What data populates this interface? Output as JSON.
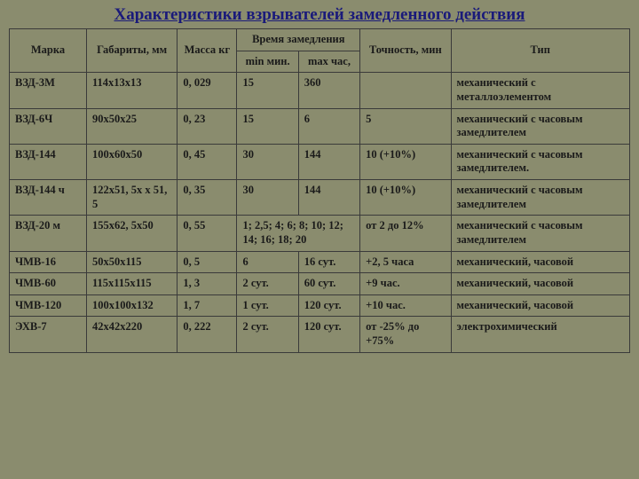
{
  "title": "Характеристики взрывателей замедленного действия",
  "headers": {
    "marka": "Марка",
    "gab": "Габариты, мм",
    "mass": "Масса кг",
    "time": "Время замедления",
    "min": "min мин.",
    "max": "max час,",
    "acc": "Точность, мин",
    "type": "Тип"
  },
  "rows": [
    {
      "marka": "ВЗД-3М",
      "gab": "114х13х13",
      "mass": "0, 029",
      "min": "15",
      "max": "360",
      "acc": "",
      "type": "механический с металлоэлементом"
    },
    {
      "marka": "ВЗД-6Ч",
      "gab": "90х50х25",
      "mass": "0, 23",
      "min": "15",
      "max": "6",
      "acc": "5",
      "type": "механический с часовым замедлителем"
    },
    {
      "marka": "ВЗД-144",
      "gab": "100х60х50",
      "mass": "0, 45",
      "min": "30",
      "max": "144",
      "acc": "10 (+10%)",
      "type": "механический с часовым замедлителем."
    },
    {
      "marka": "ВЗД-144 ч",
      "gab": "122х51, 5х х 51, 5",
      "mass": "0, 35",
      "min": "30",
      "max": "144",
      "acc": "10 (+10%)",
      "type": "механический с часовым замедлителем"
    },
    {
      "marka": "ВЗД-20 м",
      "gab": "155х62, 5х50",
      "mass": "0, 55",
      "min": "1; 2,5; 4; 6; 8; 10; 12; 14; 16; 18; 20",
      "max": "",
      "acc": "от 2 до 12%",
      "type": "механический с часовым замедлителем",
      "minspan": 2
    },
    {
      "marka": "ЧМВ-16",
      "gab": "50х50х115",
      "mass": "0, 5",
      "min": "6",
      "max": "16 сут.",
      "acc": "+2, 5 часа",
      "type": "механический, часовой"
    },
    {
      "marka": "ЧМВ-60",
      "gab": "115х115х115",
      "mass": "1, 3",
      "min": "2 сут.",
      "max": "60 сут.",
      "acc": "+9 час.",
      "type": "механический, часовой"
    },
    {
      "marka": "ЧМВ-120",
      "gab": "100х100х132",
      "mass": "1, 7",
      "min": "1 сут.",
      "max": "120 сут.",
      "acc": "+10 час.",
      "type": "механический, часовой"
    },
    {
      "marka": "ЭХВ-7",
      "gab": "42х42х220",
      "mass": "0, 222",
      "min": "2 сут.",
      "max": "120 сут.",
      "acc": "от -25% до +75%",
      "type": "электрохимический"
    }
  ],
  "styling": {
    "background_color": "#8a8c6e",
    "border_color": "#3a3a3a",
    "title_color": "#1a1a7a",
    "text_color": "#1a1a1a",
    "font_family": "Times New Roman",
    "title_fontsize": 19,
    "cell_fontsize": 12.5
  }
}
